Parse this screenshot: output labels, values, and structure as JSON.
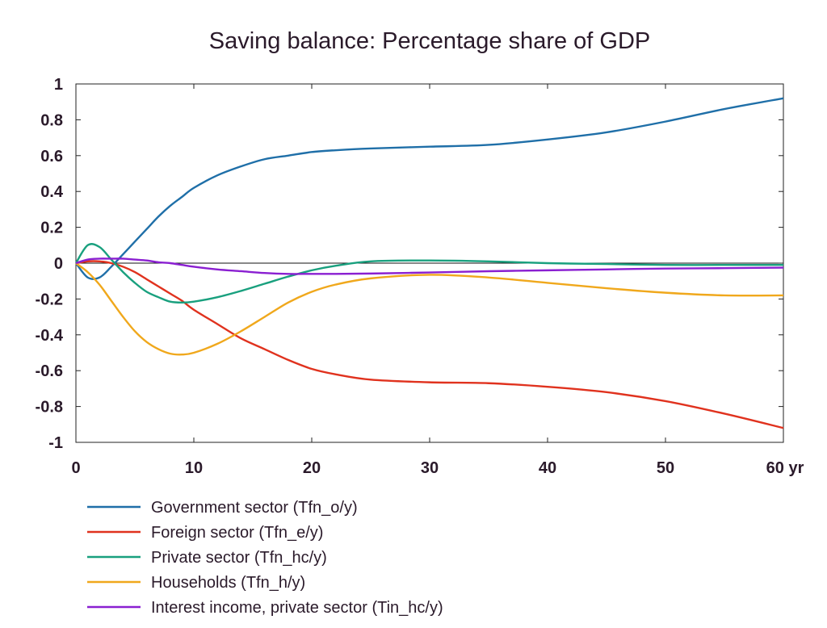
{
  "chart_data": {
    "type": "line",
    "title": "Saving balance: Percentage share of GDP",
    "xlabel": "",
    "ylabel": "",
    "xlim": [
      0,
      60
    ],
    "ylim": [
      -1,
      1
    ],
    "x_ticks": [
      0,
      10,
      20,
      30,
      40,
      50,
      60
    ],
    "x_tick_labels": [
      "0",
      "10",
      "20",
      "30",
      "40",
      "50",
      "60 yr"
    ],
    "y_ticks": [
      1,
      0.8,
      0.6,
      0.4,
      0.2,
      0,
      -0.2,
      -0.4,
      -0.6,
      -0.8,
      -1
    ],
    "y_tick_labels": [
      "1",
      "0.8",
      "0.6",
      "0.4",
      "0.2",
      "0",
      "-0.2",
      "-0.4",
      "-0.6",
      "-0.8",
      "-1"
    ],
    "grid": false,
    "legend_position": "bottom",
    "x": [
      0,
      1,
      2,
      3,
      4,
      5,
      6,
      7,
      8,
      9,
      10,
      12,
      14,
      16,
      18,
      20,
      22,
      25,
      30,
      35,
      40,
      45,
      50,
      55,
      60
    ],
    "series": [
      {
        "name": "Government sector (Tfn_o/y)",
        "color": "#1f6fa8",
        "values": [
          0,
          -0.08,
          -0.08,
          -0.02,
          0.05,
          0.12,
          0.19,
          0.26,
          0.32,
          0.37,
          0.42,
          0.49,
          0.54,
          0.58,
          0.6,
          0.62,
          0.63,
          0.64,
          0.65,
          0.66,
          0.69,
          0.73,
          0.79,
          0.86,
          0.92
        ]
      },
      {
        "name": "Foreign sector (Tfn_e/y)",
        "color": "#e0321e",
        "values": [
          0,
          0.01,
          0.01,
          0.0,
          -0.02,
          -0.05,
          -0.09,
          -0.13,
          -0.17,
          -0.21,
          -0.26,
          -0.34,
          -0.42,
          -0.48,
          -0.54,
          -0.59,
          -0.62,
          -0.65,
          -0.665,
          -0.67,
          -0.69,
          -0.72,
          -0.77,
          -0.84,
          -0.92
        ]
      },
      {
        "name": "Private sector (Tfn_hc/y)",
        "color": "#19a07e",
        "values": [
          0,
          0.1,
          0.09,
          0.02,
          -0.05,
          -0.11,
          -0.16,
          -0.19,
          -0.215,
          -0.22,
          -0.215,
          -0.19,
          -0.155,
          -0.115,
          -0.075,
          -0.04,
          -0.015,
          0.01,
          0.015,
          0.01,
          0.0,
          -0.005,
          -0.01,
          -0.01,
          -0.01
        ]
      },
      {
        "name": "Households (Tfn_h/y)",
        "color": "#f0a81c",
        "values": [
          0,
          -0.05,
          -0.12,
          -0.21,
          -0.3,
          -0.38,
          -0.44,
          -0.48,
          -0.505,
          -0.51,
          -0.5,
          -0.45,
          -0.38,
          -0.3,
          -0.22,
          -0.16,
          -0.12,
          -0.085,
          -0.065,
          -0.08,
          -0.11,
          -0.14,
          -0.165,
          -0.18,
          -0.18
        ]
      },
      {
        "name": "Interest income, private sector (Tin_hc/y)",
        "color": "#8a1fd1",
        "values": [
          0,
          0.02,
          0.025,
          0.025,
          0.025,
          0.02,
          0.015,
          0.005,
          0.0,
          -0.01,
          -0.02,
          -0.035,
          -0.045,
          -0.055,
          -0.06,
          -0.06,
          -0.06,
          -0.058,
          -0.052,
          -0.045,
          -0.04,
          -0.035,
          -0.03,
          -0.028,
          -0.025
        ]
      }
    ]
  }
}
